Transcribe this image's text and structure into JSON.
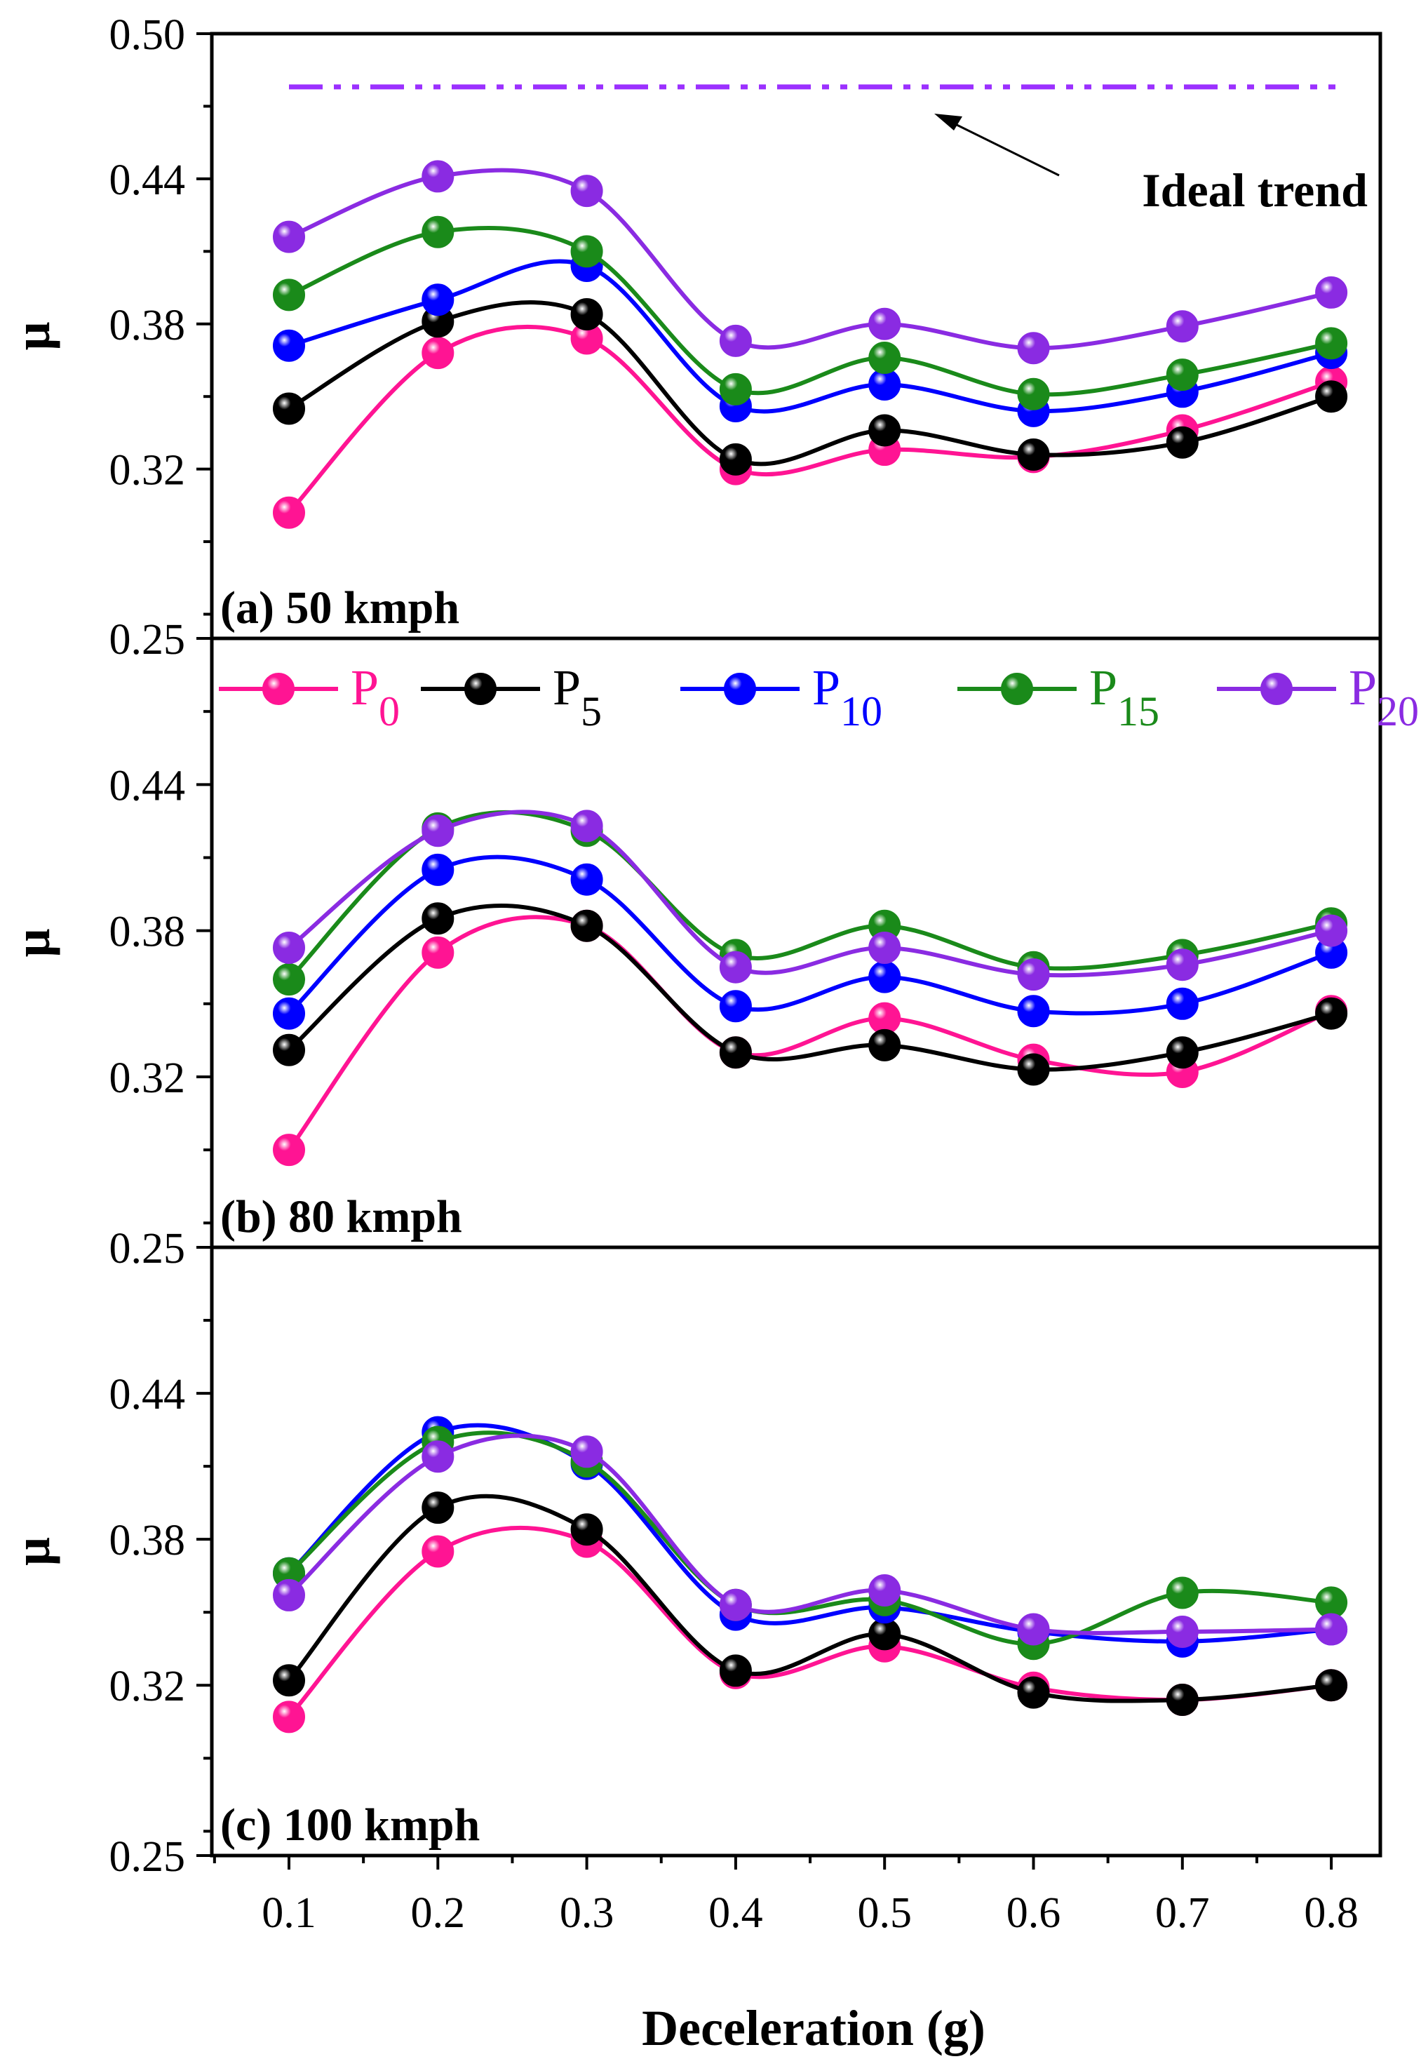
{
  "chart_data": [
    {
      "type": "line",
      "panel_label": "(a) 50 kmph",
      "ylabel": "μ",
      "ylim": [
        0.25,
        0.5
      ],
      "yticks": [
        "0.50",
        "0.44",
        "0.38",
        "0.32",
        "0.25"
      ],
      "categories": [
        0.1,
        0.2,
        0.3,
        0.4,
        0.5,
        0.6,
        0.7,
        0.8
      ],
      "annotation": {
        "text": "Ideal trend",
        "ideal_value": 0.478
      },
      "series": [
        {
          "name": "P0",
          "color": "#ff1493",
          "values": [
            0.302,
            0.368,
            0.374,
            0.32,
            0.328,
            0.325,
            0.336,
            0.356
          ]
        },
        {
          "name": "P5",
          "color": "#000000",
          "values": [
            0.345,
            0.381,
            0.384,
            0.324,
            0.336,
            0.326,
            0.331,
            0.35
          ]
        },
        {
          "name": "P10",
          "color": "#0000ff",
          "values": [
            0.371,
            0.39,
            0.404,
            0.346,
            0.355,
            0.344,
            0.352,
            0.368
          ]
        },
        {
          "name": "P15",
          "color": "#1a8a1a",
          "values": [
            0.392,
            0.418,
            0.41,
            0.353,
            0.366,
            0.351,
            0.359,
            0.372
          ]
        },
        {
          "name": "P20",
          "color": "#8a2be2",
          "values": [
            0.416,
            0.441,
            0.435,
            0.373,
            0.38,
            0.37,
            0.379,
            0.393
          ]
        }
      ]
    },
    {
      "type": "line",
      "panel_label": "(b) 80 kmph",
      "ylabel": "μ",
      "ylim": [
        0.25,
        0.5
      ],
      "yticks": [
        "0.44",
        "0.38",
        "0.32",
        "0.25"
      ],
      "categories": [
        0.1,
        0.2,
        0.3,
        0.4,
        0.5,
        0.6,
        0.7,
        0.8
      ],
      "legend": [
        {
          "base": "P",
          "sub": "0",
          "color": "#ff1493"
        },
        {
          "base": "P",
          "sub": "5",
          "color": "#000000"
        },
        {
          "base": "P",
          "sub": "10",
          "color": "#0000ff"
        },
        {
          "base": "P",
          "sub": "15",
          "color": "#1a8a1a"
        },
        {
          "base": "P",
          "sub": "20",
          "color": "#8a2be2"
        }
      ],
      "series": [
        {
          "name": "P0",
          "color": "#ff1493",
          "values": [
            0.29,
            0.371,
            0.382,
            0.33,
            0.344,
            0.327,
            0.322,
            0.347
          ]
        },
        {
          "name": "P5",
          "color": "#000000",
          "values": [
            0.331,
            0.385,
            0.382,
            0.33,
            0.333,
            0.323,
            0.33,
            0.346
          ]
        },
        {
          "name": "P10",
          "color": "#0000ff",
          "values": [
            0.346,
            0.405,
            0.401,
            0.349,
            0.361,
            0.347,
            0.35,
            0.371
          ]
        },
        {
          "name": "P15",
          "color": "#1a8a1a",
          "values": [
            0.36,
            0.422,
            0.421,
            0.37,
            0.382,
            0.365,
            0.37,
            0.383
          ]
        },
        {
          "name": "P20",
          "color": "#8a2be2",
          "values": [
            0.373,
            0.421,
            0.423,
            0.365,
            0.373,
            0.362,
            0.366,
            0.38
          ]
        }
      ]
    },
    {
      "type": "line",
      "panel_label": "(c) 100 kmph",
      "ylabel": "μ",
      "ylim": [
        0.25,
        0.5
      ],
      "yticks": [
        "0.44",
        "0.38",
        "0.32",
        "0.25"
      ],
      "categories": [
        0.1,
        0.2,
        0.3,
        0.4,
        0.5,
        0.6,
        0.7,
        0.8
      ],
      "xlabel": "Deceleration (g)",
      "xticks": [
        "0.1",
        "0.2",
        "0.3",
        "0.4",
        "0.5",
        "0.6",
        "0.7",
        "0.8"
      ],
      "series": [
        {
          "name": "P0",
          "color": "#ff1493",
          "values": [
            0.307,
            0.375,
            0.379,
            0.325,
            0.336,
            0.319,
            0.314,
            0.32
          ]
        },
        {
          "name": "P5",
          "color": "#000000",
          "values": [
            0.322,
            0.393,
            0.384,
            0.326,
            0.341,
            0.317,
            0.314,
            0.32
          ]
        },
        {
          "name": "P10",
          "color": "#0000ff",
          "values": [
            0.366,
            0.424,
            0.411,
            0.349,
            0.352,
            0.342,
            0.338,
            0.343
          ]
        },
        {
          "name": "P15",
          "color": "#1a8a1a",
          "values": [
            0.366,
            0.42,
            0.412,
            0.353,
            0.355,
            0.337,
            0.358,
            0.354
          ]
        },
        {
          "name": "P20",
          "color": "#8a2be2",
          "values": [
            0.357,
            0.414,
            0.416,
            0.353,
            0.359,
            0.343,
            0.342,
            0.343
          ]
        }
      ]
    }
  ]
}
